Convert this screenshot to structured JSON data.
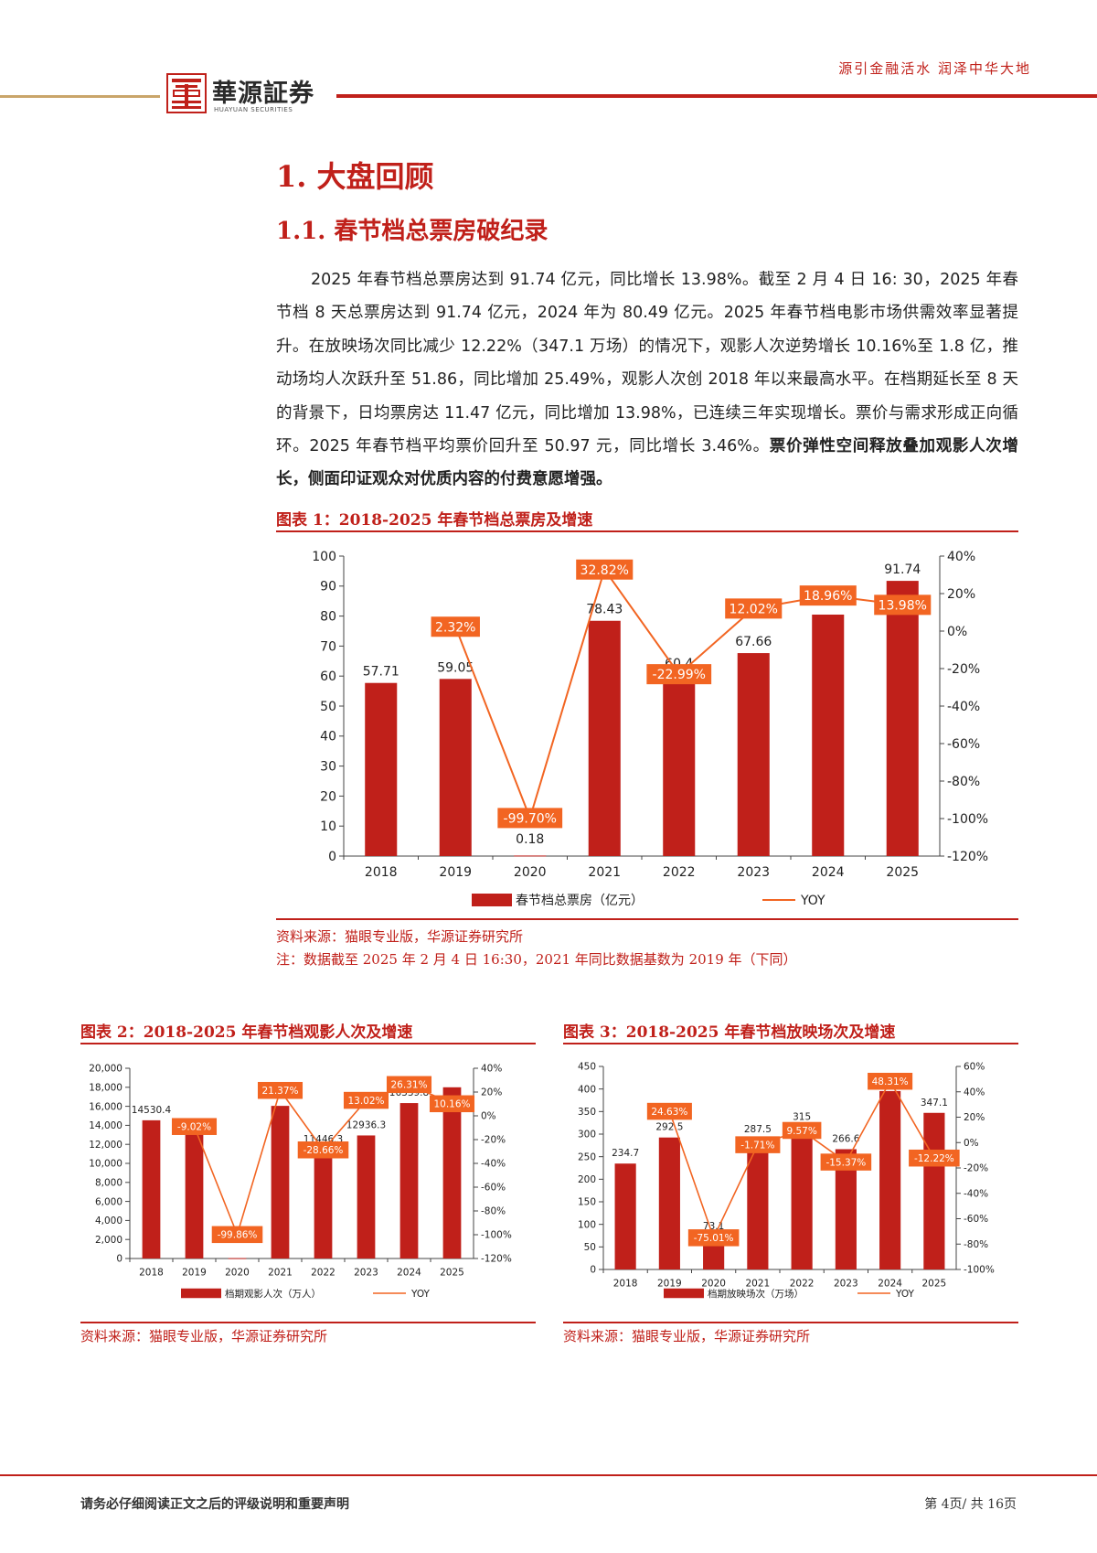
{
  "header": {
    "slogan": "源引金融活水 润泽中华大地",
    "logo_cn": "華源証券",
    "logo_en": "HUAYUAN SECURITIES"
  },
  "section": {
    "h1": "1. 大盘回顾",
    "h2": "1.1. 春节档总票房破纪录"
  },
  "body": {
    "text": "2025 年春节档总票房达到 91.74 亿元，同比增长 13.98%。截至 2 月 4 日 16: 30，2025 年春节档 8 天总票房达到 91.74 亿元，2024 年为 80.49 亿元。2025 年春节档电影市场供需效率显著提升。在放映场次同比减少 12.22%（347.1 万场）的情况下，观影人次逆势增长 10.16%至 1.8 亿，推动场均人次跃升至 51.86，同比增加 25.49%，观影人次创 2018 年以来最高水平。在档期延长至 8 天的背景下，日均票房达 11.47 亿元，同比增加 13.98%，已连续三年实现增长。票价与需求形成正向循环。2025 年春节档平均票价回升至 50.97 元，同比增长 3.46%。",
    "bold": "票价弹性空间释放叠加观影人次增长，侧面印证观众对优质内容的付费意愿增强。"
  },
  "fig1": {
    "caption": "图表 1：2018-2025 年春节档总票房及增速",
    "source": "资料来源：猫眼专业版，华源证券研究所",
    "note": "注：数据截至 2025 年 2 月 4 日 16:30，2021 年同比数据基数为 2019 年（下同）"
  },
  "fig2": {
    "caption": "图表 2：2018-2025 年春节档观影人次及增速",
    "source": "资料来源：猫眼专业版，华源证券研究所"
  },
  "fig3": {
    "caption": "图表 3：2018-2025 年春节档放映场次及增速",
    "source": "资料来源：猫眼专业版，华源证券研究所"
  },
  "footer": {
    "disclaimer": "请务必仔细阅读正文之后的评级说明和重要声明",
    "page": "第 4页/ 共 16页"
  },
  "colors": {
    "bar": "#c0201a",
    "line": "#f26522",
    "accent": "#c0201a"
  },
  "chart_data": [
    {
      "type": "bar",
      "categories": [
        "2018",
        "2019",
        "2020",
        "2021",
        "2022",
        "2023",
        "2024",
        "2025"
      ],
      "series": [
        {
          "name": "春节档总票房（亿元）",
          "values": [
            57.71,
            59.05,
            0.18,
            78.43,
            60.4,
            67.66,
            80.49,
            91.74
          ],
          "labels": [
            "57.71",
            "59.05",
            "0.18",
            "78.43",
            "60.4",
            "67.66",
            "",
            "91.74"
          ]
        },
        {
          "name": "YOY",
          "values": [
            null,
            2.32,
            -99.7,
            32.82,
            -22.99,
            12.02,
            18.96,
            13.98
          ],
          "labels": [
            "",
            "2.32%",
            "-99.70%",
            "32.82%",
            "-22.99%",
            "12.02%",
            "18.96%",
            "13.98%"
          ]
        }
      ],
      "ylim": [
        0,
        100
      ],
      "yticks": [
        "100",
        "90",
        "80",
        "70",
        "60",
        "50",
        "40",
        "30",
        "20",
        "10",
        "0"
      ],
      "y2lim": [
        -120,
        40
      ],
      "y2ticks": [
        "40%",
        "20%",
        "0%",
        "-20%",
        "-40%",
        "-60%",
        "-80%",
        "-100%",
        "-120%"
      ]
    },
    {
      "type": "bar",
      "categories": [
        "2018",
        "2019",
        "2020",
        "2021",
        "2022",
        "2023",
        "2024",
        "2025"
      ],
      "series": [
        {
          "name": "档期观影人次（万人）",
          "values": [
            14530.4,
            13220.3,
            40,
            16045.8,
            11446.3,
            12936.3,
            16339.8,
            18000
          ],
          "labels": [
            "14530.4",
            "13220.3",
            "",
            "16045.8",
            "11446.3",
            "12936.3",
            "16339.8",
            ""
          ]
        },
        {
          "name": "YOY",
          "values": [
            null,
            -9.02,
            -99.86,
            21.37,
            -28.66,
            13.02,
            26.31,
            10.16
          ],
          "labels": [
            "",
            "-9.02%",
            "-99.86%",
            "21.37%",
            "-28.66%",
            "13.02%",
            "26.31%",
            "10.16%"
          ]
        }
      ],
      "ylim": [
        0,
        20000
      ],
      "yticks": [
        "20,000",
        "18,000",
        "16,000",
        "14,000",
        "12,000",
        "10,000",
        "8,000",
        "6,000",
        "4,000",
        "2,000",
        "0"
      ],
      "y2lim": [
        -120,
        40
      ],
      "y2ticks": [
        "40%",
        "20%",
        "0%",
        "-20%",
        "-40%",
        "-60%",
        "-80%",
        "-100%",
        "-120%"
      ]
    },
    {
      "type": "bar",
      "categories": [
        "2018",
        "2019",
        "2020",
        "2021",
        "2022",
        "2023",
        "2024",
        "2025"
      ],
      "series": [
        {
          "name": "档期放映场次（万场）",
          "values": [
            234.7,
            292.5,
            73.1,
            287.5,
            315,
            266.6,
            395.4,
            347.1
          ],
          "labels": [
            "234.7",
            "292.5",
            "73.1",
            "287.5",
            "315",
            "266.6",
            "395.4",
            "347.1"
          ]
        },
        {
          "name": "YOY",
          "values": [
            null,
            24.63,
            -75.01,
            -1.71,
            9.57,
            -15.37,
            48.31,
            -12.22
          ],
          "labels": [
            "",
            "24.63%",
            "-75.01%",
            "-1.71%",
            "9.57%",
            "-15.37%",
            "48.31%",
            "-12.22%"
          ]
        }
      ],
      "ylim": [
        0,
        450
      ],
      "yticks": [
        "450",
        "400",
        "350",
        "300",
        "250",
        "200",
        "150",
        "100",
        "50",
        "0"
      ],
      "y2lim": [
        -100,
        60
      ],
      "y2ticks": [
        "60%",
        "40%",
        "20%",
        "0%",
        "-20%",
        "-40%",
        "-60%",
        "-80%",
        "-100%"
      ]
    }
  ]
}
